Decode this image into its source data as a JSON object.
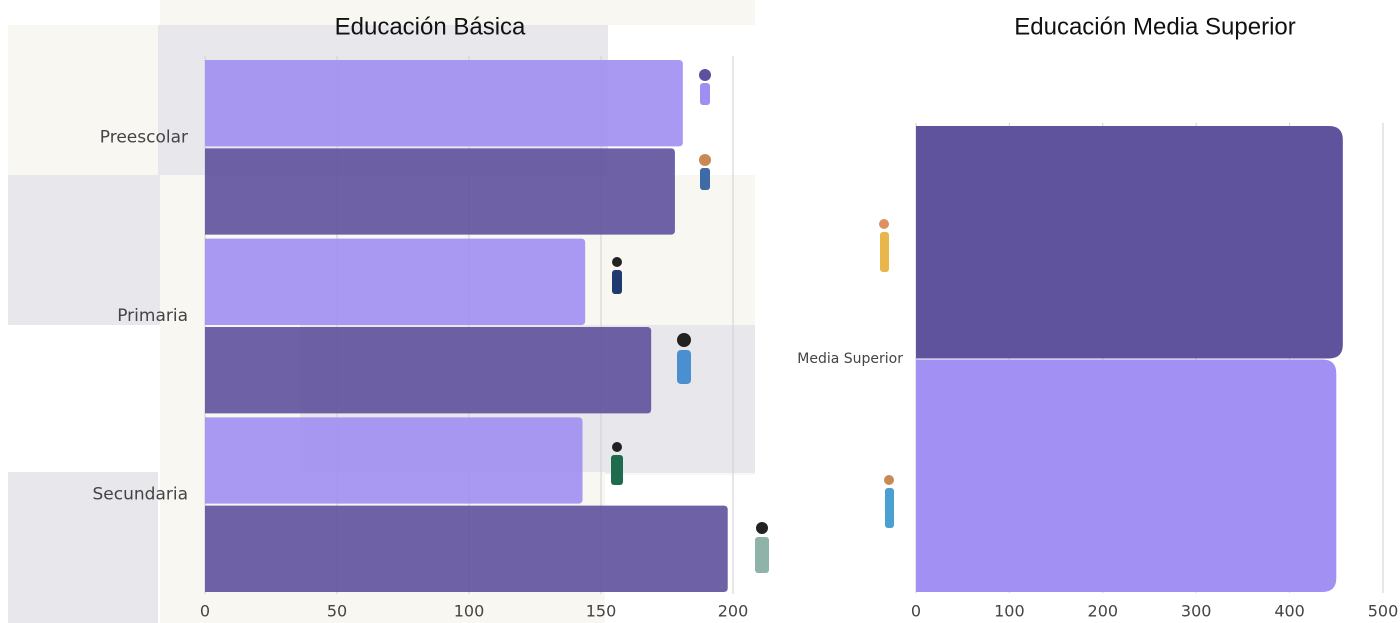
{
  "chart_data": [
    {
      "type": "barh",
      "title": "Educación Básica",
      "categories": [
        "Preescolar",
        "Primaria",
        "Secundaria"
      ],
      "series": [
        {
          "color": "#a08ef2",
          "values": [
            181,
            144,
            143
          ]
        },
        {
          "color": "#5e509c",
          "values": [
            178,
            169,
            198
          ]
        }
      ],
      "xlim": [
        0,
        200
      ],
      "xticks": [
        0,
        50,
        100,
        150,
        200
      ],
      "grid": true
    },
    {
      "type": "barh",
      "title": "Educación Media Superior",
      "categories": [
        "Media Superior"
      ],
      "series": [
        {
          "color": "#5f539d",
          "values": [
            457
          ]
        },
        {
          "color": "#a290f3",
          "values": [
            450
          ]
        }
      ],
      "xlim": [
        0,
        500
      ],
      "xticks": [
        0,
        100,
        200,
        300,
        400,
        500
      ],
      "grid": true
    }
  ]
}
